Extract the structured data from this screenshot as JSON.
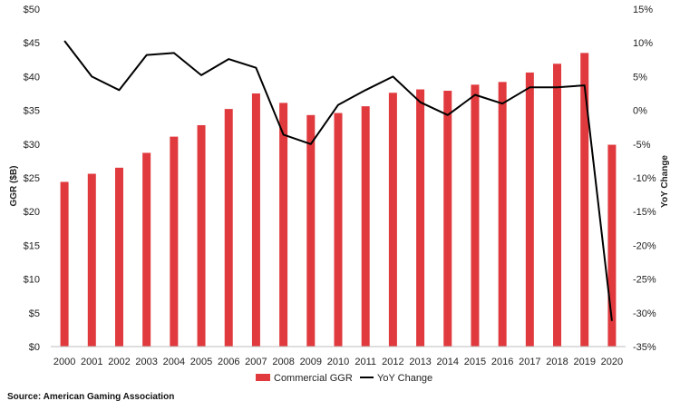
{
  "chart_data": {
    "type": "bar",
    "categories": [
      "2000",
      "2001",
      "2002",
      "2003",
      "2004",
      "2005",
      "2006",
      "2007",
      "2008",
      "2009",
      "2010",
      "2011",
      "2012",
      "2013",
      "2014",
      "2015",
      "2016",
      "2017",
      "2018",
      "2019",
      "2020"
    ],
    "series": [
      {
        "name": "Commercial GGR",
        "type": "bar",
        "axis": "left",
        "color": "#e03a3e",
        "values": [
          24.4,
          25.6,
          26.5,
          28.7,
          31.1,
          32.8,
          35.2,
          37.5,
          36.1,
          34.3,
          34.6,
          35.6,
          37.6,
          38.1,
          37.9,
          38.8,
          39.2,
          40.6,
          41.9,
          43.5,
          29.9
        ]
      },
      {
        "name": "YoY Change",
        "type": "line",
        "axis": "right",
        "color": "#000000",
        "values": [
          10.3,
          5.0,
          3.0,
          8.2,
          8.5,
          5.2,
          7.6,
          6.3,
          -3.6,
          -5.0,
          0.8,
          3.0,
          5.0,
          1.2,
          -0.7,
          2.3,
          1.0,
          3.4,
          3.4,
          3.7,
          -31.2
        ]
      }
    ],
    "ylabel_left": "GGR ($B)",
    "ylabel_right": "YoY Change",
    "ylim_left": [
      0,
      50
    ],
    "ylim_right": [
      -35,
      15
    ],
    "left_ticks": [
      "$0",
      "$5",
      "$10",
      "$15",
      "$20",
      "$25",
      "$30",
      "$35",
      "$40",
      "$45",
      "$50"
    ],
    "right_ticks": [
      "-35%",
      "-30%",
      "-25%",
      "-20%",
      "-15%",
      "-10%",
      "-5%",
      "0%",
      "5%",
      "10%",
      "15%"
    ],
    "grid": false,
    "legend_position": "bottom"
  },
  "source": "Source: American Gaming Association"
}
